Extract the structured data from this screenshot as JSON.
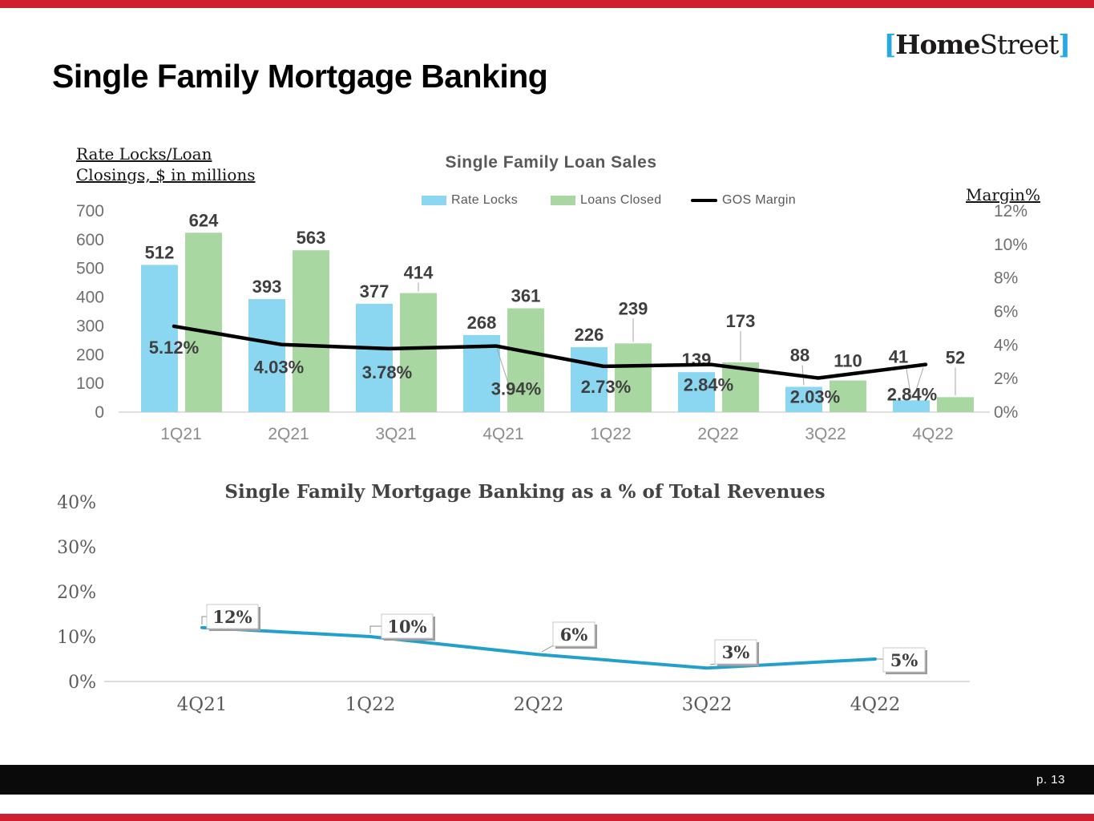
{
  "brand": {
    "bracket_left": "[",
    "name_bold": "Home",
    "name_light": "Street",
    "bracket_right": "]",
    "bracket_color": "#29A9E1"
  },
  "page": {
    "title": "Single Family Mortgage Banking",
    "page_number": "p. 13",
    "accent_red": "#CF1F2F"
  },
  "chart_data": [
    {
      "type": "bar",
      "subtype": "combo-bar-line",
      "title": "Single Family Loan Sales",
      "left_axis_title": "Rate Locks/Loan Closings, $ in millions",
      "right_axis_title": "Margin%",
      "categories": [
        "1Q21",
        "2Q21",
        "3Q21",
        "4Q21",
        "1Q22",
        "2Q22",
        "3Q22",
        "4Q22"
      ],
      "series": [
        {
          "name": "Rate Locks",
          "kind": "bar",
          "color": "#8BD7F2",
          "values": [
            512,
            393,
            377,
            268,
            226,
            139,
            88,
            41
          ]
        },
        {
          "name": "Loans Closed",
          "kind": "bar",
          "color": "#A9D7A2",
          "values": [
            624,
            563,
            414,
            361,
            239,
            173,
            110,
            52
          ]
        },
        {
          "name": "GOS Margin",
          "kind": "line",
          "color": "#000000",
          "values": [
            5.12,
            4.03,
            3.78,
            3.94,
            2.73,
            2.84,
            2.03,
            2.84
          ],
          "labels": [
            "5.12%",
            "4.03%",
            "3.78%",
            "3.94%",
            "2.73%",
            "2.84%",
            "2.03%",
            "2.84%"
          ]
        }
      ],
      "ylim_left": [
        0,
        700
      ],
      "left_ticks": [
        "700",
        "600",
        "500",
        "400",
        "300",
        "200",
        "100",
        "0"
      ],
      "ylim_right": [
        0,
        12
      ],
      "right_ticks": [
        "12%",
        "10%",
        "8%",
        "6%",
        "4%",
        "2%",
        "0%"
      ],
      "legend_position": "top",
      "grid": false
    },
    {
      "type": "line",
      "title": "Single Family Mortgage Banking as a % of Total Revenues",
      "categories": [
        "4Q21",
        "1Q22",
        "2Q22",
        "3Q22",
        "4Q22"
      ],
      "values": [
        12,
        10,
        6,
        3,
        5
      ],
      "labels": [
        "12%",
        "10%",
        "6%",
        "3%",
        "5%"
      ],
      "ylim": [
        0,
        40
      ],
      "yticks": [
        "40%",
        "30%",
        "20%",
        "10%",
        "0%"
      ],
      "line_color": "#239FCC",
      "grid": false
    }
  ]
}
